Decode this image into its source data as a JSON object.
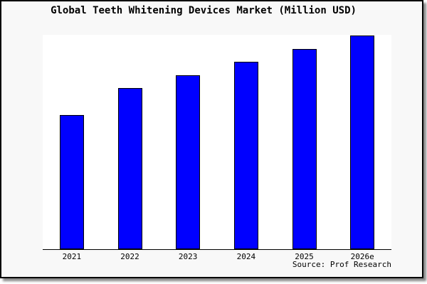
{
  "window": {
    "background": "#ffffff"
  },
  "frame": {
    "background": "#f8f8f8",
    "border_color": "#000000",
    "shadow_color": "#8a8a8a"
  },
  "chart_data": {
    "type": "bar",
    "title": "Global Teeth Whitening Devices Market (Million USD)",
    "categories": [
      "2021",
      "2022",
      "2023",
      "2024",
      "2025",
      "2026e"
    ],
    "values": [
      62.6,
      75.0,
      81.1,
      87.4,
      93.4,
      99.7
    ],
    "values_unit": "relative bar height, % of plot area (y-axis has no ticks or labels)",
    "xlabel": "",
    "ylabel": "",
    "ylim": [
      0,
      100
    ],
    "grid": false,
    "legend": false,
    "bar_fill": "#0000ff",
    "bar_edge": "#000000",
    "plot_background": "#ffffff",
    "axis_color": "#000000",
    "source_note": "Source: Prof Research"
  }
}
